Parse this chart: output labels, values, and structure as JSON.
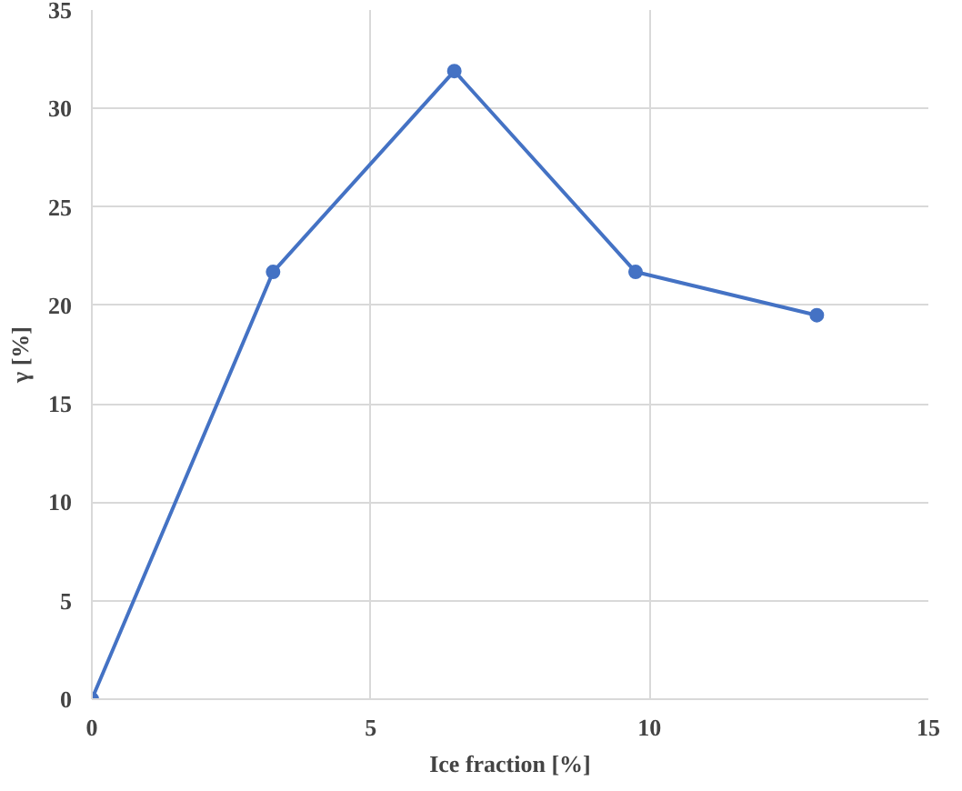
{
  "chart_data": {
    "type": "line",
    "xlabel": "Ice fraction [%]",
    "ylabel": "γ [%]",
    "x": [
      0,
      3.25,
      6.5,
      9.75,
      13
    ],
    "series": [
      {
        "color": "#4472c4",
        "values": [
          0,
          21.7,
          31.9,
          21.7,
          19.5
        ]
      }
    ],
    "xlim": [
      0,
      15
    ],
    "ylim": [
      0,
      35
    ],
    "xticks": [
      0,
      5,
      10,
      15
    ],
    "yticks": [
      0,
      5,
      10,
      15,
      20,
      25,
      30,
      35
    ],
    "grid": true,
    "marker": "circle",
    "line_style": "solid"
  }
}
